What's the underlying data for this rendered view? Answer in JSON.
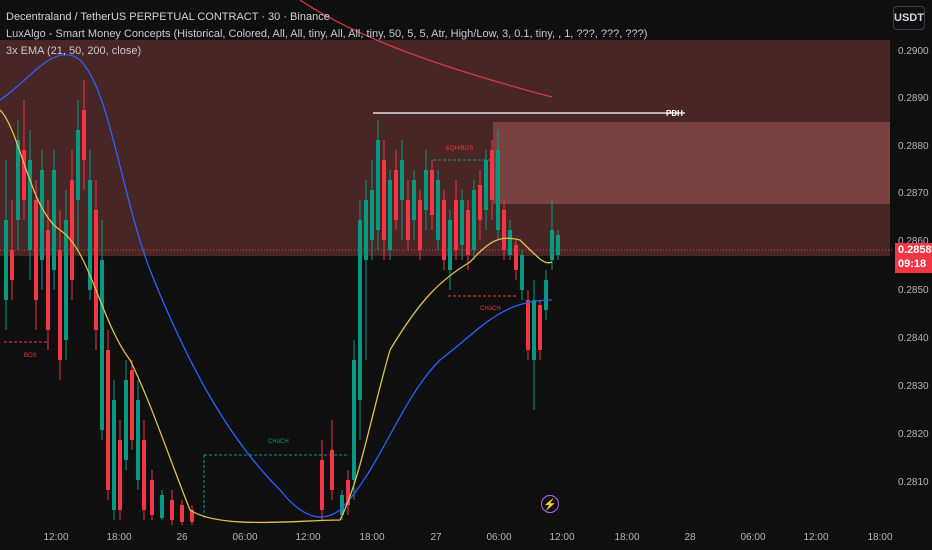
{
  "legend": {
    "title": "Decentraland / TetherUS PERPETUAL CONTRACT · 30 · Binance",
    "indicator_smc": "LuxAlgo - Smart Money Concepts (Historical, Colored, All, All, tiny, All, All, tiny, 50, 5, 5, Atr, High/Low, 3, 0.1, tiny, , 1, ???, ???, ???)",
    "indicator_ema": "3x EMA (21, 50, 200, close)"
  },
  "currency_button": "USDT",
  "price_axis": {
    "ticks": [
      "0.2900",
      "0.2890",
      "0.2880",
      "0.2870",
      "0.2860",
      "0.2850",
      "0.2840",
      "0.2830",
      "0.2820",
      "0.2810"
    ],
    "current_price": "0.2858",
    "countdown": "09:18"
  },
  "time_axis": [
    "12:00",
    "18:00",
    "26",
    "06:00",
    "12:00",
    "18:00",
    "27",
    "06:00",
    "12:00",
    "18:00",
    "28",
    "06:00",
    "12:00",
    "18:00"
  ],
  "annotations": {
    "pdh": "PDH",
    "bos": "BOS",
    "choch_low": "CHoCH",
    "choch_mid": "CHoCH",
    "eqh_bos": "EQH/BOS"
  },
  "colors": {
    "background": "#0f0f0f",
    "up_candle": "#089981",
    "down_candle": "#f23645",
    "ema21": "#e3c04a",
    "ema50": "#2962ff",
    "ema200": "#d23a4a",
    "supply_zone": "#9b4b4b"
  },
  "icons": {
    "alert": "lightning-icon"
  }
}
